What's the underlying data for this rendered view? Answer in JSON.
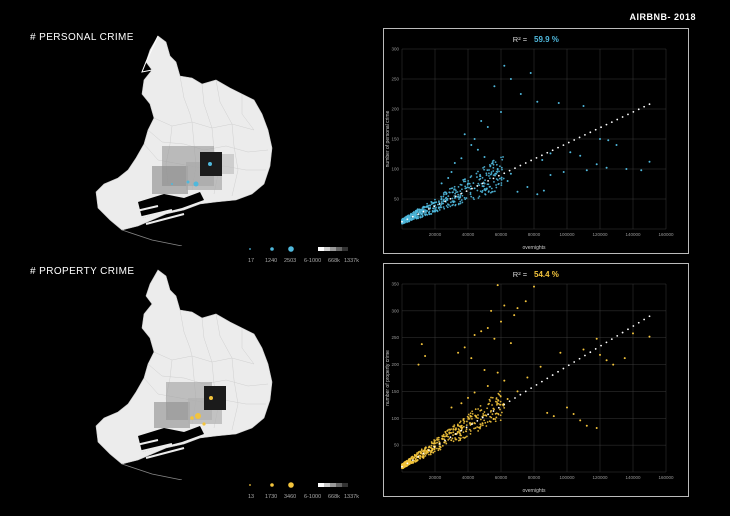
{
  "header": {
    "title": "AIRBNB- 2018"
  },
  "colors": {
    "personal": "#4fb8dc",
    "property": "#f3c43c",
    "trend": "#ffffff"
  },
  "sections": [
    {
      "key": "personal",
      "title": "# PERSONAL CRIME",
      "legend": {
        "dot_small": "17",
        "dot_mid": "1240",
        "dot_large": "2503",
        "grad_label": "6-1000",
        "grad_mid": "668k",
        "grad_max": "1337k"
      }
    },
    {
      "key": "property",
      "title": "# PROPERTY CRIME",
      "legend": {
        "dot_small": "13",
        "dot_mid": "1730",
        "dot_large": "3460",
        "grad_label": "6-1000",
        "grad_mid": "668k",
        "grad_max": "1337k"
      }
    }
  ],
  "chart_data": [
    {
      "type": "scatter",
      "title": "R² = 59.9 %",
      "title_prefix": "R² = ",
      "title_value": "59.9 %",
      "xlabel": "overnights",
      "ylabel": "number of personal crime",
      "xlim": [
        0,
        160000
      ],
      "ylim": [
        0,
        300
      ],
      "xticks": [
        "20000",
        "40000",
        "60000",
        "80000",
        "100000",
        "120000",
        "140000",
        "160000"
      ],
      "yticks": [
        "50",
        "100",
        "150",
        "200",
        "250",
        "300"
      ],
      "grid": true,
      "trend": {
        "x0": 0,
        "y0": 12,
        "x1": 150000,
        "y1": 208
      },
      "highlight_points": [
        [
          62000,
          272
        ],
        [
          78000,
          260
        ],
        [
          66000,
          250
        ],
        [
          56000,
          238
        ],
        [
          72000,
          225
        ],
        [
          82000,
          212
        ],
        [
          95000,
          210
        ],
        [
          110000,
          205
        ],
        [
          60000,
          195
        ],
        [
          48000,
          180
        ],
        [
          52000,
          170
        ],
        [
          38000,
          158
        ],
        [
          44000,
          150
        ],
        [
          120000,
          150
        ],
        [
          125000,
          148
        ],
        [
          130000,
          140
        ],
        [
          102000,
          128
        ],
        [
          108000,
          122
        ],
        [
          90000,
          126
        ],
        [
          85000,
          115
        ],
        [
          150000,
          112
        ],
        [
          118000,
          108
        ],
        [
          124000,
          102
        ],
        [
          136000,
          100
        ],
        [
          145000,
          98
        ],
        [
          112000,
          98
        ],
        [
          98000,
          95
        ],
        [
          90000,
          90
        ],
        [
          86000,
          64
        ],
        [
          82000,
          58
        ],
        [
          70000,
          62
        ],
        [
          76000,
          70
        ],
        [
          64000,
          80
        ],
        [
          66000,
          92
        ],
        [
          58000,
          100
        ],
        [
          55000,
          110
        ],
        [
          50000,
          120
        ],
        [
          46000,
          132
        ],
        [
          42000,
          140
        ],
        [
          36000,
          118
        ],
        [
          32000,
          110
        ],
        [
          30000,
          95
        ],
        [
          28000,
          85
        ],
        [
          24000,
          76
        ]
      ]
    },
    {
      "type": "scatter",
      "title": "R² = 54.4 %",
      "title_prefix": "R² = ",
      "title_value": "54.4 %",
      "xlabel": "overnights",
      "ylabel": "number of property crime",
      "xlim": [
        0,
        160000
      ],
      "ylim": [
        0,
        350
      ],
      "xticks": [
        "20000",
        "40000",
        "60000",
        "80000",
        "100000",
        "120000",
        "140000",
        "160000"
      ],
      "yticks": [
        "50",
        "100",
        "150",
        "200",
        "250",
        "300",
        "350"
      ],
      "grid": true,
      "trend": {
        "x0": 0,
        "y0": 10,
        "x1": 150000,
        "y1": 290
      },
      "highlight_points": [
        [
          58000,
          348
        ],
        [
          80000,
          345
        ],
        [
          75000,
          318
        ],
        [
          62000,
          310
        ],
        [
          54000,
          300
        ],
        [
          70000,
          305
        ],
        [
          68000,
          292
        ],
        [
          60000,
          280
        ],
        [
          52000,
          268
        ],
        [
          48000,
          262
        ],
        [
          44000,
          255
        ],
        [
          56000,
          248
        ],
        [
          66000,
          240
        ],
        [
          38000,
          232
        ],
        [
          34000,
          222
        ],
        [
          42000,
          212
        ],
        [
          12000,
          238
        ],
        [
          14000,
          216
        ],
        [
          10000,
          200
        ],
        [
          50000,
          190
        ],
        [
          58000,
          185
        ],
        [
          62000,
          170
        ],
        [
          52000,
          160
        ],
        [
          44000,
          148
        ],
        [
          40000,
          138
        ],
        [
          36000,
          128
        ],
        [
          30000,
          120
        ],
        [
          88000,
          110
        ],
        [
          92000,
          104
        ],
        [
          100000,
          120
        ],
        [
          104000,
          108
        ],
        [
          108000,
          96
        ],
        [
          112000,
          86
        ],
        [
          118000,
          82
        ],
        [
          120000,
          218
        ],
        [
          124000,
          208
        ],
        [
          128000,
          200
        ],
        [
          135000,
          212
        ],
        [
          110000,
          228
        ],
        [
          150000,
          252
        ],
        [
          140000,
          258
        ],
        [
          118000,
          248
        ],
        [
          96000,
          222
        ],
        [
          84000,
          196
        ],
        [
          76000,
          176
        ],
        [
          70000,
          150
        ],
        [
          64000,
          136
        ]
      ]
    }
  ]
}
